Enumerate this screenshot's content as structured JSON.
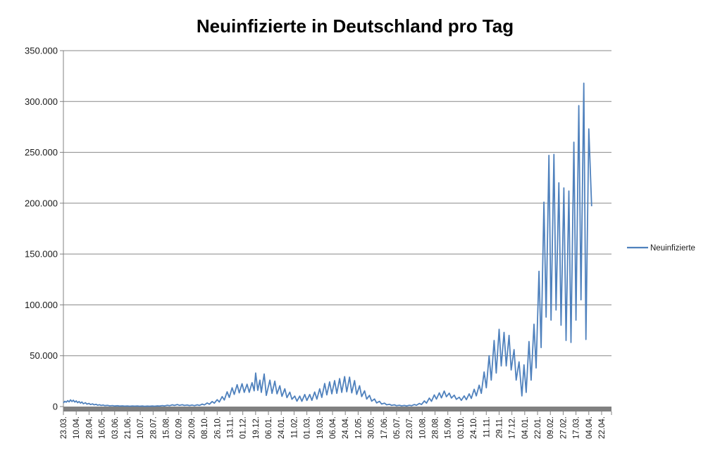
{
  "title": "Neuinfizierte in Deutschland pro Tag",
  "legend": {
    "label": "Neuinfizierte",
    "position": "right"
  },
  "colors": {
    "series_line": "#4F81BD",
    "gridline": "#878787",
    "axis_line": "#808080",
    "axis_bar": "#808080",
    "label_text": "#1a1a1a",
    "title_text": "#000000",
    "background": "#ffffff"
  },
  "y_axis": {
    "tick_labels": [
      "350.000",
      "300.000",
      "250.000",
      "200.000",
      "150.000",
      "100.000",
      "50.000",
      "0"
    ],
    "min": 0,
    "max": 350000,
    "step": 50000
  },
  "x_axis": {
    "tick_labels": [
      "23.03.",
      "10.04.",
      "28.04.",
      "16.05.",
      "03.06.",
      "21.06.",
      "10.07.",
      "28.07.",
      "15.08.",
      "02.09.",
      "20.09.",
      "08.10.",
      "26.10.",
      "13.11.",
      "01.12.",
      "19.12.",
      "06.01.",
      "24.01.",
      "11.02.",
      "01.03.",
      "19.03.",
      "06.04.",
      "24.04.",
      "12.05.",
      "30.05.",
      "17.06.",
      "05.07.",
      "23.07.",
      "10.08.",
      "28.08.",
      "15.09.",
      "03.10.",
      "24.10.",
      "11.11.",
      "29.11.",
      "17.12.",
      "04.01.",
      "22.01.",
      "09.02.",
      "27.02.",
      "17.03.",
      "04.04.",
      "22.04.",
      ""
    ],
    "days_per_tick": 18,
    "start_date": "23.03.2020",
    "end_date": "22.04.2022"
  },
  "chart_data": {
    "type": "line",
    "title": "Neuinfizierte in Deutschland pro Tag",
    "xlabel": "",
    "ylabel": "",
    "ylim": [
      0,
      350000
    ],
    "grid": "horizontal",
    "legend_position": "right",
    "x_unit": "day index from 23.03.2020",
    "series": [
      {
        "name": "Neuinfizierte",
        "color": "#4F81BD",
        "points": [
          [
            0,
            3600
          ],
          [
            2,
            5200
          ],
          [
            4,
            4300
          ],
          [
            6,
            5800
          ],
          [
            8,
            4600
          ],
          [
            10,
            6600
          ],
          [
            12,
            5000
          ],
          [
            14,
            6200
          ],
          [
            16,
            4400
          ],
          [
            18,
            5600
          ],
          [
            20,
            3800
          ],
          [
            22,
            5000
          ],
          [
            24,
            3400
          ],
          [
            26,
            4500
          ],
          [
            28,
            2800
          ],
          [
            31,
            3800
          ],
          [
            33,
            2400
          ],
          [
            36,
            3100
          ],
          [
            38,
            2000
          ],
          [
            41,
            2600
          ],
          [
            43,
            1700
          ],
          [
            46,
            2200
          ],
          [
            48,
            1400
          ],
          [
            51,
            1800
          ],
          [
            53,
            1100
          ],
          [
            56,
            1500
          ],
          [
            58,
            900
          ],
          [
            62,
            1200
          ],
          [
            65,
            700
          ],
          [
            69,
            1000
          ],
          [
            72,
            550
          ],
          [
            76,
            800
          ],
          [
            79,
            450
          ],
          [
            83,
            700
          ],
          [
            86,
            400
          ],
          [
            90,
            600
          ],
          [
            93,
            350
          ],
          [
            97,
            650
          ],
          [
            100,
            400
          ],
          [
            104,
            600
          ],
          [
            107,
            350
          ],
          [
            111,
            550
          ],
          [
            114,
            300
          ],
          [
            118,
            500
          ],
          [
            121,
            320
          ],
          [
            125,
            550
          ],
          [
            128,
            380
          ],
          [
            132,
            700
          ],
          [
            135,
            480
          ],
          [
            139,
            950
          ],
          [
            142,
            650
          ],
          [
            146,
            1300
          ],
          [
            149,
            850
          ],
          [
            153,
            1700
          ],
          [
            156,
            1100
          ],
          [
            160,
            2000
          ],
          [
            163,
            1200
          ],
          [
            167,
            1800
          ],
          [
            170,
            1100
          ],
          [
            174,
            1600
          ],
          [
            177,
            950
          ],
          [
            181,
            1500
          ],
          [
            184,
            900
          ],
          [
            188,
            1700
          ],
          [
            191,
            1100
          ],
          [
            195,
            2400
          ],
          [
            198,
            1600
          ],
          [
            202,
            3500
          ],
          [
            205,
            2300
          ],
          [
            209,
            5000
          ],
          [
            212,
            3300
          ],
          [
            216,
            6800
          ],
          [
            219,
            4500
          ],
          [
            223,
            9800
          ],
          [
            226,
            6400
          ],
          [
            230,
            14500
          ],
          [
            233,
            9000
          ],
          [
            237,
            18500
          ],
          [
            240,
            12000
          ],
          [
            244,
            21500
          ],
          [
            247,
            13500
          ],
          [
            251,
            22500
          ],
          [
            254,
            14000
          ],
          [
            258,
            22000
          ],
          [
            261,
            14000
          ],
          [
            265,
            23500
          ],
          [
            268,
            15500
          ],
          [
            270,
            33000
          ],
          [
            273,
            16000
          ],
          [
            276,
            26000
          ],
          [
            278,
            14000
          ],
          [
            282,
            32000
          ],
          [
            285,
            11000
          ],
          [
            290,
            26000
          ],
          [
            293,
            13000
          ],
          [
            297,
            25000
          ],
          [
            300,
            12500
          ],
          [
            304,
            20500
          ],
          [
            307,
            10000
          ],
          [
            311,
            17500
          ],
          [
            314,
            8800
          ],
          [
            318,
            14200
          ],
          [
            321,
            7200
          ],
          [
            325,
            10300
          ],
          [
            328,
            5300
          ],
          [
            332,
            10300
          ],
          [
            335,
            5200
          ],
          [
            339,
            11900
          ],
          [
            342,
            6000
          ],
          [
            346,
            11900
          ],
          [
            349,
            6100
          ],
          [
            353,
            14300
          ],
          [
            356,
            7300
          ],
          [
            360,
            17500
          ],
          [
            363,
            9000
          ],
          [
            367,
            22700
          ],
          [
            370,
            11500
          ],
          [
            374,
            24300
          ],
          [
            377,
            12500
          ],
          [
            381,
            25500
          ],
          [
            384,
            13000
          ],
          [
            388,
            27500
          ],
          [
            391,
            14000
          ],
          [
            395,
            29500
          ],
          [
            398,
            14500
          ],
          [
            402,
            29000
          ],
          [
            405,
            13500
          ],
          [
            409,
            25500
          ],
          [
            412,
            12000
          ],
          [
            416,
            20500
          ],
          [
            419,
            9800
          ],
          [
            423,
            15500
          ],
          [
            426,
            7400
          ],
          [
            430,
            11000
          ],
          [
            433,
            5300
          ],
          [
            437,
            7500
          ],
          [
            440,
            3600
          ],
          [
            444,
            5200
          ],
          [
            447,
            2500
          ],
          [
            451,
            3400
          ],
          [
            454,
            1700
          ],
          [
            458,
            2300
          ],
          [
            461,
            1200
          ],
          [
            465,
            1700
          ],
          [
            468,
            850
          ],
          [
            472,
            1300
          ],
          [
            475,
            700
          ],
          [
            479,
            1100
          ],
          [
            482,
            600
          ],
          [
            486,
            1300
          ],
          [
            489,
            800
          ],
          [
            493,
            2000
          ],
          [
            496,
            1300
          ],
          [
            500,
            3100
          ],
          [
            503,
            2000
          ],
          [
            507,
            5500
          ],
          [
            510,
            3400
          ],
          [
            514,
            8400
          ],
          [
            517,
            5200
          ],
          [
            521,
            11500
          ],
          [
            524,
            7300
          ],
          [
            528,
            13500
          ],
          [
            531,
            8600
          ],
          [
            535,
            15300
          ],
          [
            538,
            9700
          ],
          [
            542,
            13200
          ],
          [
            545,
            8400
          ],
          [
            549,
            11200
          ],
          [
            552,
            7100
          ],
          [
            556,
            9200
          ],
          [
            559,
            6100
          ],
          [
            563,
            10500
          ],
          [
            566,
            6800
          ],
          [
            570,
            12500
          ],
          [
            573,
            8000
          ],
          [
            577,
            17000
          ],
          [
            580,
            10500
          ],
          [
            584,
            21000
          ],
          [
            587,
            13000
          ],
          [
            591,
            34000
          ],
          [
            594,
            18500
          ],
          [
            598,
            50000
          ],
          [
            601,
            26000
          ],
          [
            605,
            65000
          ],
          [
            608,
            33000
          ],
          [
            612,
            76000
          ],
          [
            615,
            40000
          ],
          [
            619,
            73000
          ],
          [
            622,
            40000
          ],
          [
            626,
            70000
          ],
          [
            629,
            36000
          ],
          [
            633,
            56000
          ],
          [
            636,
            26000
          ],
          [
            640,
            44000
          ],
          [
            644,
            10500
          ],
          [
            647,
            41000
          ],
          [
            650,
            14000
          ],
          [
            654,
            64000
          ],
          [
            657,
            26000
          ],
          [
            661,
            81000
          ],
          [
            664,
            38000
          ],
          [
            668,
            133000
          ],
          [
            671,
            58000
          ],
          [
            675,
            201000
          ],
          [
            678,
            88000
          ],
          [
            682,
            247000
          ],
          [
            685,
            85000
          ],
          [
            689,
            248000
          ],
          [
            692,
            95000
          ],
          [
            696,
            220000
          ],
          [
            699,
            80000
          ],
          [
            703,
            215000
          ],
          [
            706,
            65000
          ],
          [
            710,
            212000
          ],
          [
            713,
            63000
          ],
          [
            717,
            260000
          ],
          [
            720,
            85000
          ],
          [
            724,
            296000
          ],
          [
            727,
            105000
          ],
          [
            731,
            318000
          ],
          [
            734,
            66000
          ],
          [
            738,
            273000
          ],
          [
            742,
            197000
          ]
        ]
      }
    ]
  }
}
